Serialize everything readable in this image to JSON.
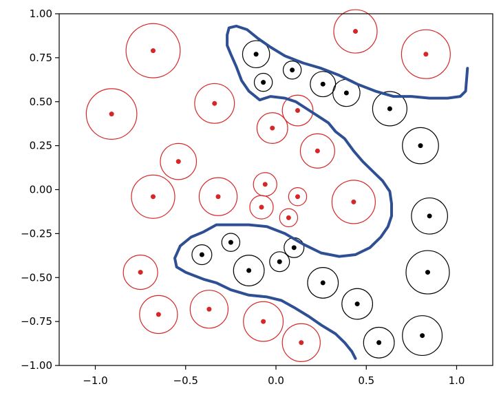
{
  "chart_data": {
    "type": "scatter",
    "title": "",
    "xlabel": "",
    "ylabel": "",
    "xlim": [
      -1.2,
      1.2
    ],
    "ylim": [
      -1.0,
      1.0
    ],
    "x_ticks": [
      -1.0,
      -0.5,
      0.0,
      0.5,
      1.0
    ],
    "x_tick_labels": [
      "−1.0",
      "−0.5",
      "0.0",
      "0.5",
      "1.0"
    ],
    "y_ticks": [
      1.0,
      0.75,
      0.5,
      0.25,
      0.0,
      -0.25,
      -0.5,
      -0.75,
      -1.0
    ],
    "y_tick_labels": [
      "1.00",
      "0.75",
      "0.50",
      "0.25",
      "0.00",
      "−0.25",
      "−0.50",
      "−0.75",
      "−1.00"
    ],
    "grid": false,
    "legend": "none",
    "colors": {
      "class_a": "#d62728",
      "class_b": "#000000",
      "boundary": "#2e4f94"
    },
    "series": [
      {
        "class": "a",
        "color": "#d62728",
        "points": [
          {
            "x": -0.68,
            "y": 0.79,
            "r": 0.15
          },
          {
            "x": 0.44,
            "y": 0.9,
            "r": 0.12
          },
          {
            "x": 0.83,
            "y": 0.77,
            "r": 0.135
          },
          {
            "x": -0.91,
            "y": 0.43,
            "r": 0.14
          },
          {
            "x": -0.34,
            "y": 0.49,
            "r": 0.11
          },
          {
            "x": 0.12,
            "y": 0.45,
            "r": 0.085
          },
          {
            "x": -0.02,
            "y": 0.35,
            "r": 0.085
          },
          {
            "x": 0.23,
            "y": 0.22,
            "r": 0.095
          },
          {
            "x": -0.54,
            "y": 0.16,
            "r": 0.1
          },
          {
            "x": -0.06,
            "y": 0.03,
            "r": 0.065
          },
          {
            "x": -0.68,
            "y": -0.04,
            "r": 0.12
          },
          {
            "x": -0.32,
            "y": -0.04,
            "r": 0.105
          },
          {
            "x": 0.12,
            "y": -0.04,
            "r": 0.05
          },
          {
            "x": 0.43,
            "y": -0.07,
            "r": 0.12
          },
          {
            "x": -0.08,
            "y": -0.1,
            "r": 0.065
          },
          {
            "x": 0.07,
            "y": -0.16,
            "r": 0.05
          },
          {
            "x": -0.75,
            "y": -0.47,
            "r": 0.095
          },
          {
            "x": -0.37,
            "y": -0.68,
            "r": 0.105
          },
          {
            "x": -0.65,
            "y": -0.71,
            "r": 0.105
          },
          {
            "x": -0.07,
            "y": -0.75,
            "r": 0.11
          },
          {
            "x": 0.14,
            "y": -0.87,
            "r": 0.105
          }
        ]
      },
      {
        "class": "b",
        "color": "#000000",
        "points": [
          {
            "x": -0.11,
            "y": 0.77,
            "r": 0.075
          },
          {
            "x": 0.09,
            "y": 0.68,
            "r": 0.05
          },
          {
            "x": -0.07,
            "y": 0.61,
            "r": 0.05
          },
          {
            "x": 0.26,
            "y": 0.6,
            "r": 0.07
          },
          {
            "x": 0.39,
            "y": 0.55,
            "r": 0.075
          },
          {
            "x": 0.63,
            "y": 0.46,
            "r": 0.095
          },
          {
            "x": 0.8,
            "y": 0.25,
            "r": 0.1
          },
          {
            "x": 0.85,
            "y": -0.15,
            "r": 0.1
          },
          {
            "x": -0.25,
            "y": -0.3,
            "r": 0.05
          },
          {
            "x": 0.1,
            "y": -0.33,
            "r": 0.055
          },
          {
            "x": -0.41,
            "y": -0.37,
            "r": 0.055
          },
          {
            "x": 0.02,
            "y": -0.41,
            "r": 0.055
          },
          {
            "x": -0.15,
            "y": -0.46,
            "r": 0.085
          },
          {
            "x": 0.84,
            "y": -0.47,
            "r": 0.12
          },
          {
            "x": 0.26,
            "y": -0.53,
            "r": 0.085
          },
          {
            "x": 0.45,
            "y": -0.65,
            "r": 0.085
          },
          {
            "x": 0.81,
            "y": -0.83,
            "r": 0.11
          },
          {
            "x": 0.57,
            "y": -0.87,
            "r": 0.085
          }
        ]
      }
    ],
    "boundary": {
      "x": [
        0.44,
        0.42,
        0.38,
        0.33,
        0.25,
        0.18,
        0.1,
        0.03,
        -0.05,
        -0.15,
        -0.25,
        -0.33,
        -0.4,
        -0.45,
        -0.5,
        -0.55,
        -0.56,
        -0.53,
        -0.47,
        -0.4,
        -0.33,
        -0.25,
        -0.15,
        -0.05,
        0.05,
        0.15,
        0.25,
        0.35,
        0.44,
        0.52,
        0.58,
        0.62,
        0.64,
        0.64,
        0.63,
        0.59,
        0.54,
        0.48,
        0.43,
        0.38,
        0.33,
        0.29,
        0.23,
        0.17,
        0.11,
        0.05,
        -0.03,
        -0.09,
        -0.15,
        -0.19,
        -0.22,
        -0.25,
        -0.27,
        -0.27,
        -0.26,
        -0.22,
        -0.16,
        -0.1,
        -0.03,
        0.05,
        0.15,
        0.25,
        0.35,
        0.45,
        0.55,
        0.65,
        0.75,
        0.85,
        0.95,
        1.02,
        1.05,
        1.06
      ],
      "y": [
        -0.96,
        -0.92,
        -0.87,
        -0.82,
        -0.77,
        -0.72,
        -0.67,
        -0.63,
        -0.61,
        -0.6,
        -0.57,
        -0.53,
        -0.51,
        -0.49,
        -0.47,
        -0.44,
        -0.39,
        -0.32,
        -0.27,
        -0.24,
        -0.2,
        -0.2,
        -0.2,
        -0.21,
        -0.25,
        -0.31,
        -0.36,
        -0.38,
        -0.37,
        -0.33,
        -0.27,
        -0.21,
        -0.15,
        -0.08,
        -0.01,
        0.05,
        0.1,
        0.16,
        0.22,
        0.29,
        0.33,
        0.38,
        0.42,
        0.46,
        0.5,
        0.52,
        0.53,
        0.51,
        0.56,
        0.62,
        0.7,
        0.77,
        0.82,
        0.88,
        0.92,
        0.93,
        0.91,
        0.86,
        0.81,
        0.76,
        0.72,
        0.69,
        0.65,
        0.6,
        0.56,
        0.53,
        0.53,
        0.52,
        0.52,
        0.53,
        0.56,
        0.69
      ]
    }
  }
}
